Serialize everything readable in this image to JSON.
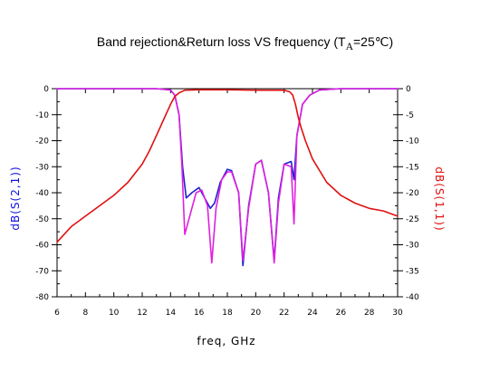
{
  "chart_data": {
    "type": "line",
    "title_parts": {
      "main": "Band rejection&Return loss VS frequency (T",
      "sub": "A",
      "tail": "=25℃)"
    },
    "xlabel": "freq, GHz",
    "ylabel_left": "dB(S(2,1))",
    "ylabel_right": "dB(S(1,1))",
    "xlim": [
      6,
      30
    ],
    "ylim_left": [
      -80,
      0
    ],
    "ylim_right": [
      -40,
      0
    ],
    "x_ticks": [
      "6",
      "8",
      "10",
      "12",
      "14",
      "16",
      "18",
      "20",
      "22",
      "24",
      "26",
      "28",
      "30"
    ],
    "y_left_ticks": [
      "0",
      "-10",
      "-20",
      "-30",
      "-40",
      "-50",
      "-60",
      "-70",
      "-80"
    ],
    "y_right_ticks": [
      "0",
      "-5",
      "-10",
      "-15",
      "-20",
      "-25",
      "-30",
      "-35",
      "-40"
    ],
    "grid": false,
    "colors": {
      "s21_a": "#2020d0",
      "s21_b": "#e020e0",
      "s11": "#e01010"
    },
    "series": [
      {
        "id": "s21_a",
        "axis": "left",
        "x": [
          6,
          10,
          13,
          14,
          14.3,
          14.6,
          14.85,
          15.1,
          15.5,
          16,
          16.4,
          16.8,
          17.1,
          17.5,
          18,
          18.3,
          18.8,
          19.1,
          19.5,
          20,
          20.4,
          20.9,
          21.3,
          21.6,
          22,
          22.5,
          22.7,
          22.9,
          23.3,
          23.8,
          24.5,
          26,
          30
        ],
        "y": [
          0,
          0,
          0,
          -0.5,
          -2.5,
          -10,
          -30,
          -42,
          -40,
          -38,
          -42,
          -46,
          -44,
          -36,
          -31,
          -31.5,
          -40,
          -68,
          -45,
          -29,
          -27.5,
          -40,
          -66,
          -42,
          -29,
          -28,
          -35,
          -18,
          -6,
          -2.5,
          -0.5,
          0,
          0
        ]
      },
      {
        "id": "s21_b",
        "axis": "left",
        "x": [
          6,
          10,
          13,
          14,
          14.3,
          14.6,
          14.8,
          15,
          15.3,
          15.8,
          16.2,
          16.6,
          16.9,
          17.2,
          17.6,
          18,
          18.3,
          18.8,
          19.1,
          19.5,
          20,
          20.4,
          20.9,
          21.3,
          21.6,
          22,
          22.5,
          22.7,
          22.9,
          23.3,
          23.8,
          24.5,
          26,
          30
        ],
        "y": [
          0,
          0,
          0,
          -0.5,
          -2.5,
          -10,
          -30,
          -56,
          -50,
          -40,
          -39,
          -45,
          -67,
          -46,
          -35,
          -32,
          -32,
          -40,
          -66,
          -46,
          -29,
          -27.5,
          -40,
          -67,
          -44,
          -29,
          -30,
          -52,
          -18,
          -6,
          -2.5,
          -0.5,
          0,
          0
        ]
      },
      {
        "id": "s11",
        "axis": "right",
        "x": [
          6,
          7,
          8,
          9,
          10,
          11,
          12,
          12.5,
          13,
          13.5,
          14,
          14.3,
          14.6,
          15,
          16,
          18,
          20,
          22,
          22.4,
          22.6,
          22.8,
          23,
          23.2,
          23.5,
          24,
          25,
          26,
          27,
          28,
          29,
          30
        ],
        "y": [
          -29.5,
          -26.5,
          -24.5,
          -22.5,
          -20.5,
          -18,
          -14.5,
          -12,
          -9,
          -6,
          -3,
          -1.5,
          -0.8,
          -0.3,
          -0.2,
          -0.2,
          -0.3,
          -0.3,
          -0.6,
          -1.2,
          -3,
          -5.5,
          -7.5,
          -10,
          -13.5,
          -18,
          -20.5,
          -22,
          -23,
          -23.5,
          -24.5
        ]
      }
    ]
  }
}
